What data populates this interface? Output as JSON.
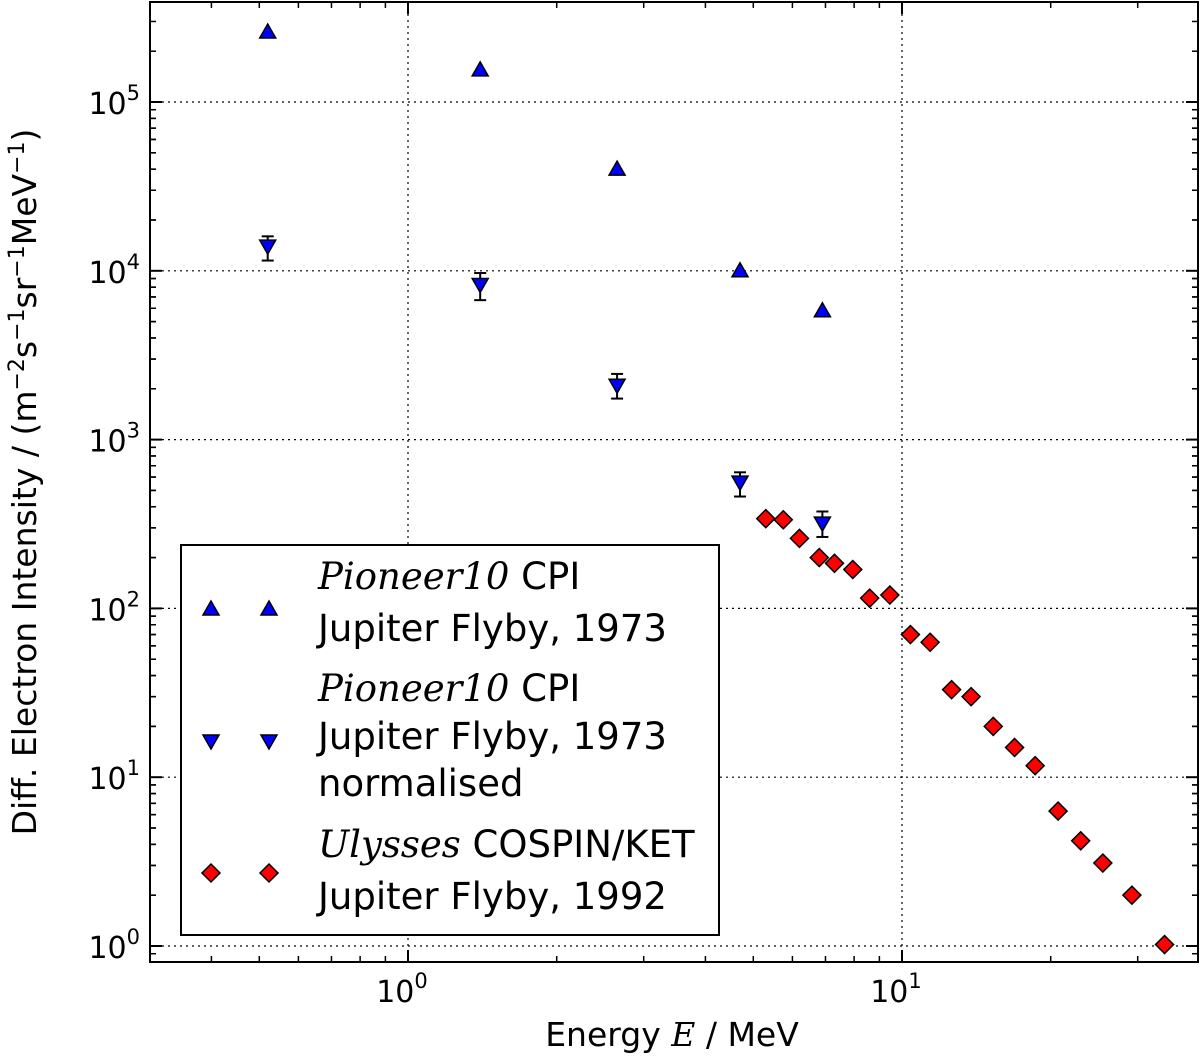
{
  "chart_data": {
    "type": "scatter",
    "title": "",
    "xlabel": "Energy",
    "xlabel_var": "E",
    "xlabel_unit": " / MeV",
    "ylabel_prefix": "Diff. Electron Intensity / (m",
    "ylabel_sup1": "−2",
    "ylabel_mid1": "s",
    "ylabel_sup2": "−1",
    "ylabel_mid2": "sr",
    "ylabel_sup3": "−1",
    "ylabel_mid3": "MeV",
    "ylabel_sup4": "−1",
    "ylabel_suffix": ")",
    "xscale": "log",
    "yscale": "log",
    "xlim": [
      0.28,
      38
    ],
    "ylim": [
      0.8,
      500000
    ],
    "grid": true,
    "legend_position": "lower-left",
    "x_ticks": [
      {
        "base": "10",
        "exp": "0",
        "value": 1
      },
      {
        "base": "10",
        "exp": "1",
        "value": 10
      }
    ],
    "y_ticks": [
      {
        "base": "10",
        "exp": "0",
        "value": 1
      },
      {
        "base": "10",
        "exp": "1",
        "value": 10
      },
      {
        "base": "10",
        "exp": "2",
        "value": 100
      },
      {
        "base": "10",
        "exp": "3",
        "value": 1000
      },
      {
        "base": "10",
        "exp": "4",
        "value": 10000
      },
      {
        "base": "10",
        "exp": "5",
        "value": 100000
      }
    ],
    "series": [
      {
        "name": "Pioneer 10 CPI Jupiter Flyby, 1973",
        "legend_italic": "Pioneer10",
        "legend_rest": " CPI",
        "legend_lines": [
          "Jupiter Flyby, 1973"
        ],
        "marker": "triangle-up",
        "color": "#0000ff",
        "x": [
          0.52,
          1.4,
          2.65,
          4.7,
          6.9
        ],
        "y": [
          260000,
          155000,
          40000,
          10000,
          5800
        ]
      },
      {
        "name": "Pioneer 10 CPI Jupiter Flyby, 1973 normalised",
        "legend_italic": "Pioneer10",
        "legend_rest": " CPI",
        "legend_lines": [
          "Jupiter Flyby, 1973",
          "normalised"
        ],
        "marker": "triangle-down",
        "color": "#0000ff",
        "x": [
          0.52,
          1.4,
          2.65,
          4.7,
          6.9
        ],
        "y": [
          14000,
          8300,
          2100,
          560,
          320
        ],
        "yerr_low": [
          11500,
          6700,
          1750,
          460,
          265
        ],
        "yerr_high": [
          16000,
          9700,
          2450,
          640,
          375
        ]
      },
      {
        "name": "Ulysses COSPIN/KET Jupiter Flyby, 1992",
        "legend_italic": "Ulysses",
        "legend_rest": " COSPIN/KET",
        "legend_lines": [
          "Jupiter Flyby, 1992"
        ],
        "marker": "diamond",
        "color": "#ff0000",
        "x": [
          5.3,
          5.75,
          6.2,
          6.8,
          7.3,
          7.95,
          8.6,
          9.45,
          10.4,
          11.4,
          12.6,
          13.8,
          15.3,
          16.9,
          18.6,
          20.7,
          23.0,
          25.5,
          29.2,
          34.0
        ],
        "y": [
          340,
          335,
          260,
          200,
          185,
          170,
          115,
          120,
          70,
          63,
          33,
          30,
          20,
          15,
          11.7,
          6.3,
          4.2,
          3.1,
          2.0,
          1.02
        ]
      }
    ]
  }
}
